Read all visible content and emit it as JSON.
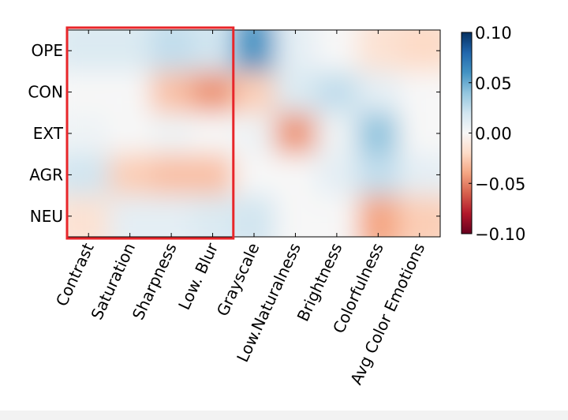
{
  "chart_data": {
    "type": "heatmap",
    "x_categories": [
      "Contrast",
      "Saturation",
      "Sharpness",
      "Low. Blur",
      "Grayscale",
      "Low.Naturalness",
      "Brightness",
      "Colorfulness",
      "Avg Color Emotions"
    ],
    "y_categories": [
      "OPE",
      "CON",
      "EXT",
      "AGR",
      "NEU"
    ],
    "values": [
      [
        0.015,
        0.015,
        0.025,
        0.02,
        0.06,
        0.01,
        0.0,
        -0.015,
        -0.02
      ],
      [
        0.0,
        0.0,
        -0.03,
        -0.045,
        -0.025,
        0.015,
        0.025,
        0.01,
        0.0
      ],
      [
        0.005,
        0.0,
        0.005,
        0.0,
        0.005,
        -0.045,
        0.005,
        0.04,
        0.0
      ],
      [
        0.02,
        -0.025,
        -0.03,
        -0.03,
        0.0,
        0.0,
        0.01,
        0.025,
        0.01
      ],
      [
        -0.015,
        0.01,
        0.01,
        0.015,
        0.02,
        0.0,
        0.0,
        -0.04,
        -0.025
      ]
    ],
    "colorbar": {
      "min": -0.1,
      "max": 0.1,
      "ticks": [
        "0.10",
        "0.05",
        "0.00",
        "−0.05",
        "−0.10"
      ],
      "colormap": "RdBu",
      "low_color": "#67001f",
      "high_color": "#053061"
    },
    "highlight_box": {
      "columns": [
        "Contrast",
        "Saturation",
        "Sharpness",
        "Low. Blur"
      ],
      "color": "#e8262a"
    }
  }
}
